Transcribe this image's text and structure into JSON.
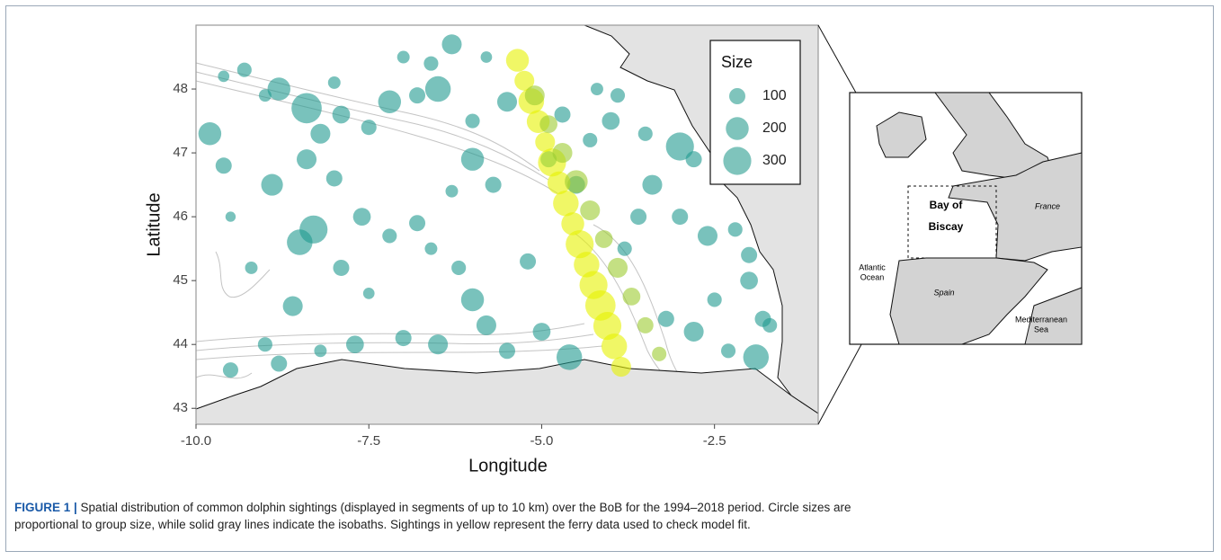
{
  "chart_data": {
    "type": "scatter",
    "xlabel": "Longitude",
    "ylabel": "Latitude",
    "xlim": [
      -10,
      -1
    ],
    "ylim": [
      42.75,
      49
    ],
    "xticks": [
      {
        "value": -10,
        "label": "-10.0"
      },
      -7.5,
      {
        "value": -5,
        "label": "-5.0"
      },
      -2.5
    ],
    "yticks": [
      43,
      44,
      45,
      46,
      47,
      48
    ],
    "opacity": 0.6,
    "size_legend": {
      "title": "Size",
      "values": [
        100,
        200,
        300
      ],
      "color": "#2a9d8f"
    },
    "series": [
      {
        "color": "#1f9a90",
        "x": [
          -9.6,
          -9.3,
          -9.0,
          -8.8,
          -8.4,
          -8.2,
          -7.9,
          -7.5,
          -7.2,
          -6.8,
          -6.5,
          -6.3,
          -6.6,
          -7.0,
          -9.8,
          -9.6,
          -8.9,
          -8.4,
          -8.0,
          -7.6,
          -8.3,
          -8.5,
          -7.2,
          -6.8,
          -6.3,
          -6.0,
          -5.7,
          -6.6,
          -6.2,
          -7.5,
          -8.6,
          -9.0,
          -8.8,
          -9.5,
          -8.2,
          -7.7,
          -7.0,
          -6.5,
          -6.0,
          -5.8,
          -5.5,
          -5.0,
          -4.6,
          -5.2,
          -6.0,
          -5.5,
          -4.7,
          -4.3,
          -4.0,
          -3.5,
          -3.0,
          -2.8,
          -3.4,
          -3.0,
          -2.6,
          -2.2,
          -2.0,
          -2.0,
          -2.5,
          -1.8,
          -1.7,
          -2.8,
          -3.2,
          -2.3,
          -1.9,
          -3.8,
          -3.6,
          -4.5,
          -4.9,
          -4.2,
          -3.9,
          -5.8,
          -8.0,
          -9.5,
          -9.2,
          -7.9
        ],
        "values": [
          48.2,
          48.3,
          47.9,
          48.0,
          47.7,
          47.3,
          47.6,
          47.4,
          47.8,
          47.9,
          48.0,
          48.7,
          48.4,
          48.5,
          47.3,
          46.8,
          46.5,
          46.9,
          46.6,
          46.0,
          45.8,
          45.6,
          45.7,
          45.9,
          46.4,
          46.9,
          46.5,
          45.5,
          45.2,
          44.8,
          44.6,
          44.0,
          43.7,
          43.6,
          43.9,
          44.0,
          44.1,
          44.0,
          44.7,
          44.3,
          43.9,
          44.2,
          43.8,
          45.3,
          47.5,
          47.8,
          47.6,
          47.2,
          47.5,
          47.3,
          47.1,
          46.9,
          46.5,
          46.0,
          45.7,
          45.8,
          45.4,
          45.0,
          44.7,
          44.4,
          44.3,
          44.2,
          44.4,
          43.9,
          43.8,
          45.5,
          46.0,
          46.5,
          46.9,
          48.0,
          47.9,
          48.5,
          48.1,
          46.0,
          45.2,
          45.2
        ],
        "sizes": [
          50,
          80,
          60,
          200,
          350,
          150,
          120,
          90,
          200,
          100,
          250,
          150,
          80,
          60,
          200,
          100,
          180,
          150,
          100,
          120,
          300,
          250,
          80,
          100,
          60,
          200,
          100,
          60,
          80,
          50,
          150,
          80,
          100,
          90,
          60,
          120,
          100,
          150,
          200,
          150,
          100,
          120,
          250,
          100,
          80,
          150,
          100,
          80,
          120,
          80,
          300,
          100,
          150,
          100,
          150,
          80,
          100,
          120,
          80,
          100,
          80,
          150,
          100,
          80,
          250,
          80,
          100,
          120,
          100,
          60,
          80,
          50,
          60,
          40,
          60,
          100
        ]
      },
      {
        "color": "#e6f200",
        "x": [
          -5.35,
          -5.25,
          -5.15,
          -5.05,
          -4.95,
          -4.85,
          -4.75,
          -4.65,
          -4.55,
          -4.45,
          -4.35,
          -4.25,
          -4.15,
          -4.05,
          -3.95,
          -3.85
        ],
        "values": [
          48.45,
          48.13,
          47.81,
          47.49,
          47.17,
          46.85,
          46.53,
          46.21,
          45.89,
          45.57,
          45.25,
          44.93,
          44.61,
          44.29,
          43.97,
          43.65
        ],
        "sizes": [
          200,
          150,
          250,
          200,
          150,
          300,
          200,
          250,
          200,
          300,
          250,
          300,
          350,
          300,
          250,
          150
        ]
      },
      {
        "color": "#9ccc30",
        "x": [
          -5.1,
          -4.9,
          -4.7,
          -4.5,
          -4.3,
          -4.1,
          -3.9,
          -3.7,
          -3.5,
          -3.3
        ],
        "values": [
          47.9,
          47.45,
          47.0,
          46.55,
          46.1,
          45.65,
          45.2,
          44.75,
          44.3,
          43.85
        ],
        "sizes": [
          150,
          120,
          150,
          200,
          150,
          120,
          150,
          120,
          100,
          80
        ]
      }
    ]
  },
  "inset": {
    "bay": [
      "Bay of",
      "Biscay"
    ],
    "france": "France",
    "atlantic": [
      "Atlantic",
      "Ocean"
    ],
    "spain": "Spain",
    "mediterranean": [
      "Mediterranean",
      "Sea"
    ]
  },
  "caption": {
    "label": "FIGURE 1 |",
    "lines": [
      " Spatial distribution of common dolphin sightings (displayed in segments of up to 10 km) over the BoB for the 1994–2018 period. Circle sizes are",
      "proportional to group size, while solid gray lines indicate the isobaths. Sightings in yellow represent the ferry data used to check model fit."
    ]
  }
}
